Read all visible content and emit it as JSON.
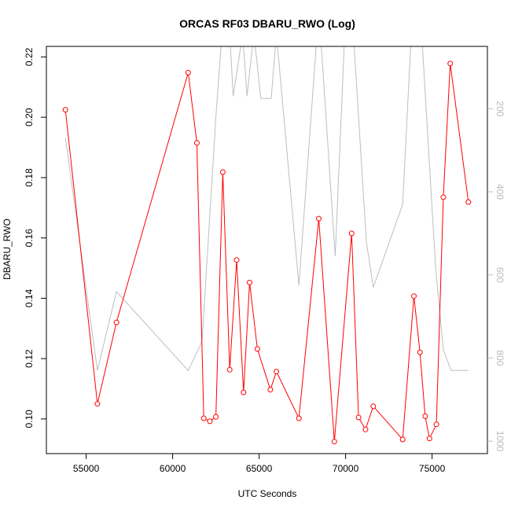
{
  "chart_data": {
    "type": "line",
    "title": "ORCAS RF03 DBARU_RWO (Log)",
    "xlabel": "UTC Seconds",
    "ylabel": "DBARU_RWO",
    "xlim": [
      52700,
      78200
    ],
    "ylim": [
      0.0885,
      0.2235
    ],
    "x_ticks": [
      55000,
      60000,
      65000,
      70000,
      75000
    ],
    "x_tick_labels": [
      "55000",
      "60000",
      "65000",
      "70000",
      "75000"
    ],
    "y_ticks": [
      0.1,
      0.12,
      0.14,
      0.16,
      0.18,
      0.2,
      0.22
    ],
    "y_tick_labels": [
      "0.10",
      "0.12",
      "0.14",
      "0.16",
      "0.18",
      "0.20",
      "0.22"
    ],
    "y2_lim": [
      1030,
      50
    ],
    "y2_ticks": [
      200,
      400,
      600,
      800,
      1000
    ],
    "y2_tick_labels": [
      "200",
      "400",
      "600",
      "800",
      "1000"
    ],
    "grid": false,
    "colors": {
      "series": "#ff0000",
      "secondary": "#bebebe",
      "axis": "#000000",
      "secondary_axis": "#bbbbbb"
    },
    "series": [
      {
        "marker": "open-circle",
        "color": "#ff0000",
        "x": [
          53800,
          55650,
          56750,
          60900,
          61400,
          61800,
          62150,
          62500,
          62900,
          63300,
          63700,
          64100,
          64450,
          64900,
          65650,
          66000,
          67300,
          68450,
          69350,
          70350,
          70750,
          71150,
          71600,
          73300,
          73950,
          74300,
          74600,
          74850,
          75250,
          75650,
          76050,
          77100
        ],
        "values": [
          0.2025,
          0.105,
          0.132,
          0.2148,
          0.1915,
          0.1002,
          0.0992,
          0.1007,
          0.1818,
          0.1163,
          0.1527,
          0.1088,
          0.1452,
          0.1232,
          0.1097,
          0.1157,
          0.1002,
          0.1664,
          0.0925,
          0.1615,
          0.1005,
          0.0965,
          0.1042,
          0.0932,
          0.1407,
          0.1221,
          0.1009,
          0.0935,
          0.0982,
          0.1735,
          0.2178,
          0.1719
        ]
      },
      {
        "axis": "right",
        "color": "#bebebe",
        "x": [
          53800,
          55650,
          56750,
          60900,
          61700,
          62500,
          62850,
          63300,
          63500,
          64050,
          64300,
          64700,
          65100,
          65700,
          66000,
          67300,
          68350,
          68550,
          69400,
          69950,
          70450,
          71200,
          71600,
          73300,
          73800,
          74400,
          75200,
          75650,
          76100,
          77100
        ],
        "values": [
          270,
          830,
          640,
          830,
          760,
          220,
          20,
          20,
          170,
          20,
          170,
          20,
          175,
          175,
          20,
          625,
          20,
          20,
          555,
          20,
          20,
          520,
          630,
          430,
          20,
          20,
          580,
          780,
          830,
          830
        ]
      }
    ]
  }
}
